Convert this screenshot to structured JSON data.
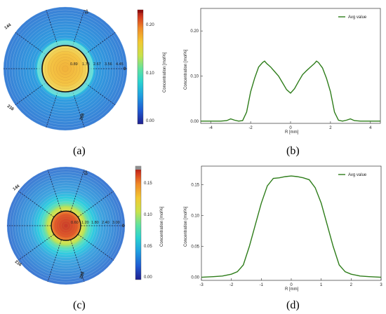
{
  "panel_labels": {
    "a": "(a)",
    "b": "(b)",
    "c": "(c)",
    "d": "(d)"
  },
  "colors": {
    "line": "#2e7d1a",
    "colormap": [
      "#1f1f8f",
      "#1f5ad1",
      "#1f9fe0",
      "#2ad2d0",
      "#5fe2a0",
      "#c9e24a",
      "#f2c832",
      "#f08a28",
      "#d3381e",
      "#8f1010"
    ]
  },
  "chart_data": [
    {
      "type": "heatmap",
      "panel": "a",
      "angle_labels": [
        "72",
        "144",
        "216",
        "288",
        "0"
      ],
      "radial_labels": [
        "0.89",
        "1.78",
        "2.67",
        "3.56",
        "4.45"
      ],
      "colorbar": {
        "label": "Concentration [mol%]",
        "ticks": [
          "0.00",
          "0.10",
          "0.20"
        ],
        "range": [
          0,
          0.24
        ]
      },
      "core_value": 0.17,
      "outer_value": 0.0
    },
    {
      "type": "line",
      "panel": "b",
      "xlabel": "R [mm]",
      "ylabel": "Concentration [mol%]",
      "xlim": [
        -4.5,
        4.5
      ],
      "ylim": [
        -0.005,
        0.25
      ],
      "xticks": [
        "-4",
        "-2",
        "0",
        "2",
        "4"
      ],
      "xtick_values": [
        -4,
        -2,
        0,
        2,
        4
      ],
      "yticks": [
        "0.00",
        "0.10",
        "0.20"
      ],
      "ytick_values": [
        0,
        0.1,
        0.2
      ],
      "series": [
        {
          "name": "Avg value",
          "x": [
            -4.5,
            -4.0,
            -3.5,
            -3.2,
            -3.0,
            -2.8,
            -2.6,
            -2.4,
            -2.2,
            -2.0,
            -1.8,
            -1.6,
            -1.4,
            -1.3,
            -1.2,
            -1.0,
            -0.8,
            -0.6,
            -0.4,
            -0.2,
            0.0,
            0.2,
            0.4,
            0.6,
            0.8,
            1.0,
            1.2,
            1.3,
            1.4,
            1.6,
            1.8,
            2.0,
            2.2,
            2.4,
            2.6,
            2.8,
            3.0,
            3.2,
            3.5,
            4.0,
            4.5
          ],
          "y": [
            0.0,
            0.0,
            0.0,
            0.001,
            0.005,
            0.002,
            0.0,
            0.001,
            0.02,
            0.065,
            0.095,
            0.12,
            0.13,
            0.133,
            0.128,
            0.12,
            0.11,
            0.1,
            0.085,
            0.07,
            0.062,
            0.072,
            0.088,
            0.103,
            0.112,
            0.12,
            0.128,
            0.133,
            0.13,
            0.118,
            0.095,
            0.065,
            0.02,
            0.002,
            0.0,
            0.002,
            0.005,
            0.001,
            0.0,
            0.0,
            0.0
          ]
        }
      ]
    },
    {
      "type": "heatmap",
      "panel": "c",
      "angle_labels": [
        "72",
        "144",
        "216",
        "288",
        "0"
      ],
      "radial_labels": [
        "0.60",
        "1.20",
        "1.80",
        "2.40",
        "3.00"
      ],
      "colorbar": {
        "label": "Concentration [mol%]",
        "ticks": [
          "0.00",
          "0.05",
          "0.10",
          "0.15"
        ],
        "range": [
          0,
          0.18
        ]
      },
      "core_value": 0.16,
      "outer_value": 0.02
    },
    {
      "type": "line",
      "panel": "d",
      "xlabel": "R [mm]",
      "ylabel": "Concentration [mol%]",
      "xlim": [
        -3,
        3
      ],
      "ylim": [
        -0.005,
        0.18
      ],
      "xticks": [
        "-3",
        "-2",
        "-1",
        "0",
        "1",
        "2",
        "3"
      ],
      "xtick_values": [
        -3,
        -2,
        -1,
        0,
        1,
        2,
        3
      ],
      "yticks": [
        "0.00",
        "0.05",
        "0.10",
        "0.15"
      ],
      "ytick_values": [
        0,
        0.05,
        0.1,
        0.15
      ],
      "series": [
        {
          "name": "Avg value",
          "x": [
            -3.0,
            -2.6,
            -2.3,
            -2.0,
            -1.8,
            -1.6,
            -1.4,
            -1.2,
            -1.0,
            -0.8,
            -0.6,
            -0.4,
            -0.2,
            0.0,
            0.2,
            0.4,
            0.6,
            0.8,
            1.0,
            1.2,
            1.4,
            1.6,
            1.8,
            2.0,
            2.3,
            2.6,
            3.0
          ],
          "y": [
            0.0,
            0.001,
            0.002,
            0.005,
            0.009,
            0.02,
            0.05,
            0.085,
            0.12,
            0.148,
            0.16,
            0.161,
            0.163,
            0.164,
            0.163,
            0.161,
            0.158,
            0.145,
            0.12,
            0.085,
            0.05,
            0.02,
            0.009,
            0.005,
            0.002,
            0.001,
            0.0
          ]
        }
      ]
    }
  ]
}
